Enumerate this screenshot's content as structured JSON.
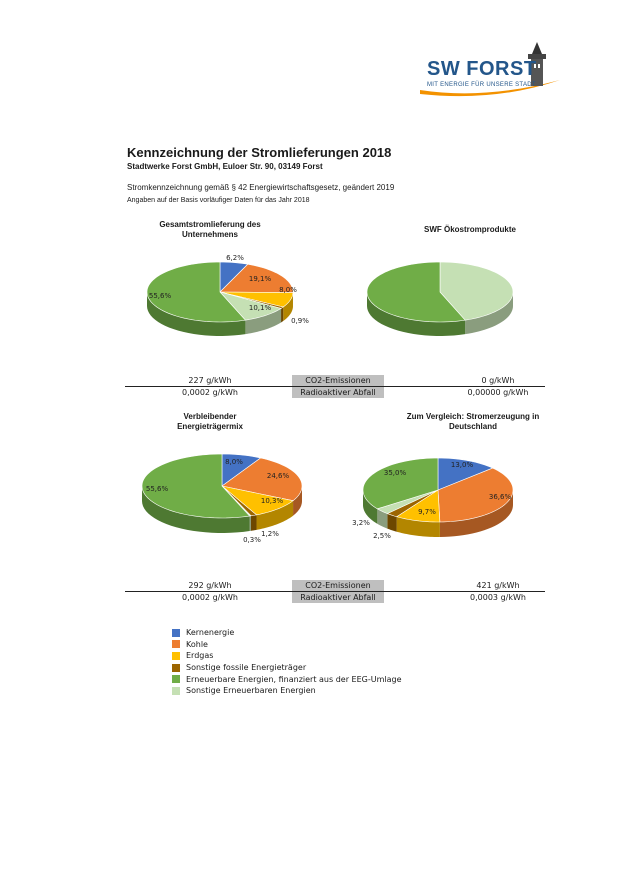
{
  "logo": {
    "name": "SW FORST",
    "tagline": "MIT ENERGIE FÜR UNSERE STADT"
  },
  "header": {
    "title": "Kennzeichnung der Stromlieferungen 2018",
    "subtitle": "Stadtwerke Forst GmbH, Euloer Str. 90, 03149 Forst",
    "line1": "Stromkennzeichnung gemäß § 42 Energiewirtschaftsgesetz, geändert 2019",
    "line2": "Angaben auf der Basis vorläufiger Daten für das Jahr 2018"
  },
  "colors": {
    "Kernenergie": "#4472c4",
    "Kohle": "#ed7d31",
    "Erdgas": "#ffc000",
    "Sonstige fossile Energieträger": "#9c6500",
    "Erneuerbare EEG": "#70ad47",
    "Sonstige Erneuerbare": "#c5e0b4"
  },
  "chart_data": [
    {
      "type": "pie",
      "title_line1": "Gesamtstromlieferung des",
      "title_line2": "Unternehmens",
      "slices": [
        {
          "label": "Kernenergie",
          "value": 6.2,
          "text": "6,2%"
        },
        {
          "label": "Kohle",
          "value": 19.1,
          "text": "19,1%"
        },
        {
          "label": "Erdgas",
          "value": 8.0,
          "text": "8,0%"
        },
        {
          "label": "Sonstige fossile Energieträger",
          "value": 0.9,
          "text": "0,9%"
        },
        {
          "label": "Sonstige Erneuerbaren Energien",
          "value": 10.1,
          "text": "10,1%"
        },
        {
          "label": "Erneuerbare Energien, finanziert aus der EEG-Umlage",
          "value": 55.6,
          "text": "55,6%"
        }
      ]
    },
    {
      "type": "pie",
      "title_line1": "SWF Ökostromprodukte",
      "title_line2": "",
      "slices": [
        {
          "label": "Sonstige Erneuerbaren Energien",
          "value": 44.4,
          "text": "44,4%"
        },
        {
          "label": "Erneuerbare Energien, finanziert aus der EEG-Umlage",
          "value": 55.6,
          "text": "55,6%"
        }
      ]
    },
    {
      "type": "pie",
      "title_line1": "Verbleibender",
      "title_line2": "Energieträgermix",
      "slices": [
        {
          "label": "Kernenergie",
          "value": 8.0,
          "text": "8,0%"
        },
        {
          "label": "Kohle",
          "value": 24.6,
          "text": "24,6%"
        },
        {
          "label": "Erdgas",
          "value": 10.3,
          "text": "10,3%"
        },
        {
          "label": "Sonstige fossile Energieträger",
          "value": 1.2,
          "text": "1,2%"
        },
        {
          "label": "Sonstige Erneuerbaren Energien",
          "value": 0.3,
          "text": "0,3%"
        },
        {
          "label": "Erneuerbare Energien, finanziert aus der EEG-Umlage",
          "value": 55.6,
          "text": "55,6%"
        }
      ]
    },
    {
      "type": "pie",
      "title_line1": "Zum Vergleich: Stromerzeugung in",
      "title_line2": "Deutschland",
      "slices": [
        {
          "label": "Kernenergie",
          "value": 13.0,
          "text": "13,0%"
        },
        {
          "label": "Kohle",
          "value": 36.6,
          "text": "36,6%"
        },
        {
          "label": "Erdgas",
          "value": 9.7,
          "text": "9,7%"
        },
        {
          "label": "Sonstige fossile Energieträger",
          "value": 2.5,
          "text": "2,5%"
        },
        {
          "label": "Sonstige Erneuerbaren Energien",
          "value": 3.2,
          "text": "3,2%"
        },
        {
          "label": "Erneuerbare Energien, finanziert aus der EEG-Umlage",
          "value": 35.0,
          "text": "35,0%"
        }
      ]
    }
  ],
  "emissions_top": {
    "left_co2": "227 g/kWh",
    "right_co2": "0 g/kWh",
    "left_waste": "0,0002 g/kWh",
    "right_waste": "0,00000 g/kWh",
    "co2_label": "CO2-Emissionen",
    "waste_label": "Radioaktiver Abfall"
  },
  "emissions_bottom": {
    "left_co2": "292 g/kWh",
    "right_co2": "421 g/kWh",
    "left_waste": "0,0002 g/kWh",
    "right_waste": "0,0003 g/kWh",
    "co2_label": "CO2-Emissionen",
    "waste_label": "Radioaktiver Abfall"
  },
  "legend": [
    {
      "label": "Kernenergie",
      "color": "#4472c4"
    },
    {
      "label": "Kohle",
      "color": "#ed7d31"
    },
    {
      "label": "Erdgas",
      "color": "#ffc000"
    },
    {
      "label": "Sonstige fossile Energieträger",
      "color": "#9c6500"
    },
    {
      "label": "Erneuerbare Energien, finanziert aus der EEG-Umlage",
      "color": "#70ad47"
    },
    {
      "label": "Sonstige Erneuerbaren Energien",
      "color": "#c5e0b4"
    }
  ]
}
